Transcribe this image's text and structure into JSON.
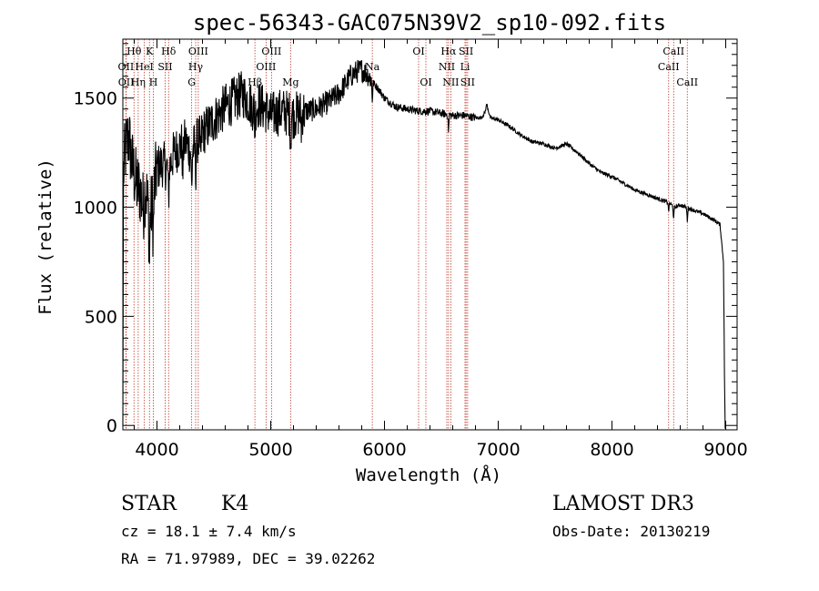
{
  "chart_data": {
    "type": "line",
    "title": "spec-56343-GAC075N39V2_sp10-092.fits",
    "xlabel": "Wavelength (Å)",
    "ylabel": "Flux (relative)",
    "xlim": [
      3700,
      9100
    ],
    "ylim": [
      -20,
      1770
    ],
    "x_ticks": [
      4000,
      5000,
      6000,
      7000,
      8000,
      9000
    ],
    "x_tick_labels": [
      "4000",
      "5000",
      "6000",
      "7000",
      "8000",
      "9000"
    ],
    "y_ticks": [
      0,
      500,
      1000,
      1500
    ],
    "y_tick_labels": [
      "0",
      "500",
      "1000",
      "1500"
    ],
    "series": [
      {
        "name": "flux",
        "anchors": [
          [
            3700,
            0
          ],
          [
            3705,
            1150
          ],
          [
            3720,
            1250
          ],
          [
            3750,
            1330
          ],
          [
            3780,
            1200
          ],
          [
            3820,
            1100
          ],
          [
            3850,
            1080
          ],
          [
            3880,
            1000
          ],
          [
            3900,
            1100
          ],
          [
            3930,
            950
          ],
          [
            3960,
            1010
          ],
          [
            3980,
            1100
          ],
          [
            4000,
            1180
          ],
          [
            4050,
            1200
          ],
          [
            4100,
            1170
          ],
          [
            4150,
            1250
          ],
          [
            4200,
            1280
          ],
          [
            4250,
            1300
          ],
          [
            4300,
            1250
          ],
          [
            4350,
            1300
          ],
          [
            4400,
            1340
          ],
          [
            4450,
            1370
          ],
          [
            4500,
            1400
          ],
          [
            4550,
            1430
          ],
          [
            4600,
            1460
          ],
          [
            4650,
            1480
          ],
          [
            4700,
            1500
          ],
          [
            4750,
            1520
          ],
          [
            4800,
            1490
          ],
          [
            4850,
            1450
          ],
          [
            4900,
            1470
          ],
          [
            4950,
            1450
          ],
          [
            5000,
            1420
          ],
          [
            5100,
            1440
          ],
          [
            5200,
            1420
          ],
          [
            5300,
            1440
          ],
          [
            5400,
            1450
          ],
          [
            5500,
            1480
          ],
          [
            5600,
            1520
          ],
          [
            5700,
            1600
          ],
          [
            5750,
            1620
          ],
          [
            5800,
            1630
          ],
          [
            5850,
            1610
          ],
          [
            5900,
            1570
          ],
          [
            5950,
            1540
          ],
          [
            6000,
            1500
          ],
          [
            6050,
            1480
          ],
          [
            6100,
            1460
          ],
          [
            6200,
            1450
          ],
          [
            6300,
            1440
          ],
          [
            6400,
            1440
          ],
          [
            6500,
            1430
          ],
          [
            6600,
            1420
          ],
          [
            6700,
            1420
          ],
          [
            6800,
            1410
          ],
          [
            6850,
            1410
          ],
          [
            6880,
            1430
          ],
          [
            6900,
            1470
          ],
          [
            6930,
            1410
          ],
          [
            7000,
            1400
          ],
          [
            7100,
            1370
          ],
          [
            7200,
            1330
          ],
          [
            7300,
            1300
          ],
          [
            7400,
            1290
          ],
          [
            7500,
            1270
          ],
          [
            7600,
            1290
          ],
          [
            7700,
            1250
          ],
          [
            7800,
            1200
          ],
          [
            7900,
            1160
          ],
          [
            8000,
            1140
          ],
          [
            8100,
            1110
          ],
          [
            8200,
            1080
          ],
          [
            8300,
            1060
          ],
          [
            8400,
            1040
          ],
          [
            8500,
            1020
          ],
          [
            8550,
            1000
          ],
          [
            8600,
            1010
          ],
          [
            8700,
            990
          ],
          [
            8800,
            970
          ],
          [
            8900,
            940
          ],
          [
            8950,
            920
          ],
          [
            8980,
            750
          ],
          [
            8990,
            180
          ]
        ]
      }
    ],
    "spectral_lines": [
      {
        "label": "Hθ",
        "x": 3798,
        "row": 0,
        "dx": 0
      },
      {
        "label": "OII",
        "x": 3727,
        "row": 1,
        "dx": 0
      },
      {
        "label": "OII",
        "x": 3729,
        "row": 2,
        "dx": 0
      },
      {
        "label": "Hη",
        "x": 3835,
        "row": 2,
        "dx": 0
      },
      {
        "label": "HeI",
        "x": 3889,
        "row": 1,
        "dx": 0
      },
      {
        "label": "K",
        "x": 3934,
        "row": 0,
        "dx": 0
      },
      {
        "label": "H",
        "x": 3968,
        "row": 2,
        "dx": 0
      },
      {
        "label": "SII",
        "x": 4072,
        "row": 1,
        "dx": 0
      },
      {
        "label": "Hδ",
        "x": 4102,
        "row": 0,
        "dx": 0
      },
      {
        "label": "OIII",
        "x": 4363,
        "row": 0,
        "dx": 0
      },
      {
        "label": "Hγ",
        "x": 4340,
        "row": 1,
        "dx": 0
      },
      {
        "label": "G",
        "x": 4305,
        "row": 2,
        "dx": 0
      },
      {
        "label": "Hβ",
        "x": 4861,
        "row": 2,
        "dx": 0
      },
      {
        "label": "OIII",
        "x": 5007,
        "row": 0,
        "dx": 0
      },
      {
        "label": "OIII",
        "x": 4959,
        "row": 1,
        "dx": 0
      },
      {
        "label": "Mg",
        "x": 5175,
        "row": 2,
        "dx": 0
      },
      {
        "label": "Na",
        "x": 5893,
        "row": 1,
        "dx": 0
      },
      {
        "label": "OI",
        "x": 6300,
        "row": 0,
        "dx": 0
      },
      {
        "label": "OI",
        "x": 6364,
        "row": 2,
        "dx": 0
      },
      {
        "label": "Hα",
        "x": 6563,
        "row": 0,
        "dx": 0
      },
      {
        "label": "NII",
        "x": 6548,
        "row": 1,
        "dx": 0
      },
      {
        "label": "NII",
        "x": 6583,
        "row": 2,
        "dx": 0
      },
      {
        "label": "SII",
        "x": 6717,
        "row": 0,
        "dx": 0
      },
      {
        "label": "Li",
        "x": 6708,
        "row": 1,
        "dx": 0
      },
      {
        "label": "SII",
        "x": 6731,
        "row": 2,
        "dx": 0
      },
      {
        "label": "CaII",
        "x": 8542,
        "row": 0,
        "dx": 0
      },
      {
        "label": "CaII",
        "x": 8498,
        "row": 1,
        "dx": 0
      },
      {
        "label": "CaII",
        "x": 8662,
        "row": 2,
        "dx": 0
      }
    ]
  },
  "info": {
    "object_class": "STAR",
    "subclass": "K4",
    "survey": "LAMOST DR3",
    "redshift": "cz = 18.1 ± 7.4 km/s",
    "obs_date": "Obs-Date: 20130219",
    "coords": "RA =  71.97989, DEC =  39.02262"
  },
  "colors": {
    "line_marker": "#c0392b",
    "spectrum": "#000000",
    "axes": "#000000",
    "background": "#ffffff"
  }
}
